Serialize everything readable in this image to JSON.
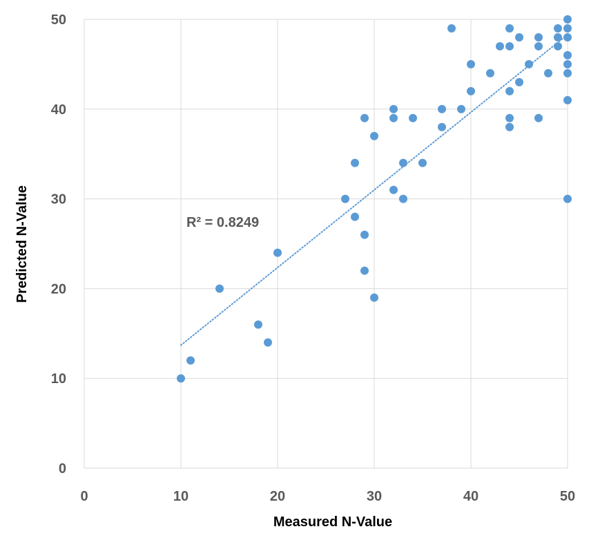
{
  "chart_data": {
    "type": "scatter",
    "xlabel": "Measured N-Value",
    "ylabel": "Predicted N-Value",
    "xlim": [
      0,
      50
    ],
    "ylim": [
      0,
      50
    ],
    "x_ticks": [
      "0",
      "10",
      "20",
      "30",
      "40",
      "50"
    ],
    "y_ticks": [
      "0",
      "10",
      "20",
      "30",
      "40",
      "50"
    ],
    "grid": true,
    "marker_color": "#5b9bd5",
    "trendline": {
      "type": "linear",
      "style": "dotted",
      "color": "#5b9bd5",
      "x_range": [
        10,
        50
      ],
      "y_at_start": 13.7,
      "y_at_end": 48.3,
      "r_squared_label": "R² = 0.8249"
    },
    "points": [
      {
        "x": 10,
        "y": 10
      },
      {
        "x": 11,
        "y": 12
      },
      {
        "x": 14,
        "y": 20
      },
      {
        "x": 18,
        "y": 16
      },
      {
        "x": 19,
        "y": 14
      },
      {
        "x": 20,
        "y": 24
      },
      {
        "x": 27,
        "y": 30
      },
      {
        "x": 28,
        "y": 34
      },
      {
        "x": 28,
        "y": 28
      },
      {
        "x": 29,
        "y": 39
      },
      {
        "x": 29,
        "y": 26
      },
      {
        "x": 29,
        "y": 22
      },
      {
        "x": 30,
        "y": 37
      },
      {
        "x": 30,
        "y": 19
      },
      {
        "x": 32,
        "y": 40
      },
      {
        "x": 32,
        "y": 39
      },
      {
        "x": 32,
        "y": 31
      },
      {
        "x": 33,
        "y": 34
      },
      {
        "x": 33,
        "y": 30
      },
      {
        "x": 34,
        "y": 39
      },
      {
        "x": 35,
        "y": 34
      },
      {
        "x": 37,
        "y": 40
      },
      {
        "x": 37,
        "y": 38
      },
      {
        "x": 38,
        "y": 49
      },
      {
        "x": 39,
        "y": 40
      },
      {
        "x": 40,
        "y": 45
      },
      {
        "x": 40,
        "y": 42
      },
      {
        "x": 42,
        "y": 44
      },
      {
        "x": 43,
        "y": 47
      },
      {
        "x": 44,
        "y": 49
      },
      {
        "x": 44,
        "y": 47
      },
      {
        "x": 44,
        "y": 42
      },
      {
        "x": 44,
        "y": 39
      },
      {
        "x": 44,
        "y": 38
      },
      {
        "x": 45,
        "y": 48
      },
      {
        "x": 45,
        "y": 43
      },
      {
        "x": 46,
        "y": 45
      },
      {
        "x": 47,
        "y": 48
      },
      {
        "x": 47,
        "y": 47
      },
      {
        "x": 47,
        "y": 39
      },
      {
        "x": 48,
        "y": 44
      },
      {
        "x": 49,
        "y": 49
      },
      {
        "x": 49,
        "y": 48
      },
      {
        "x": 49,
        "y": 47
      },
      {
        "x": 50,
        "y": 50
      },
      {
        "x": 50,
        "y": 49
      },
      {
        "x": 50,
        "y": 48
      },
      {
        "x": 50,
        "y": 46
      },
      {
        "x": 50,
        "y": 45
      },
      {
        "x": 50,
        "y": 44
      },
      {
        "x": 50,
        "y": 41
      },
      {
        "x": 50,
        "y": 30
      }
    ]
  }
}
